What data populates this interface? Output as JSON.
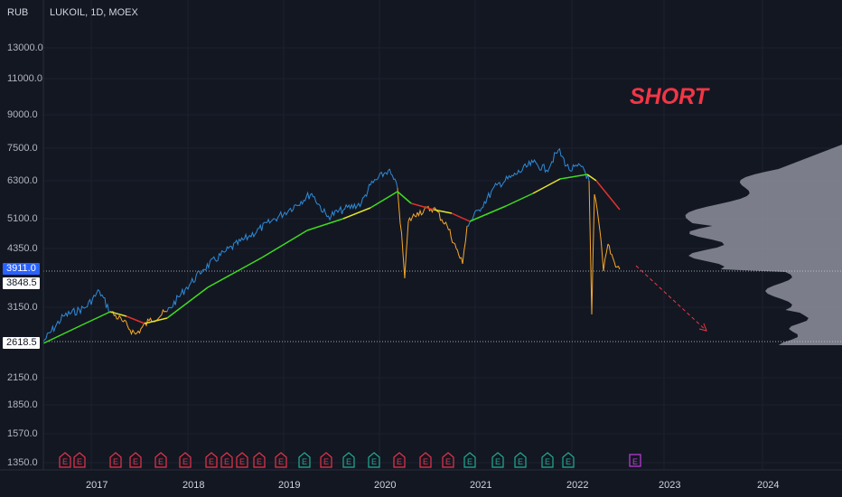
{
  "chart_title": "LUKOIL, 1D, MOEX",
  "currency": "RUB",
  "annotation": "SHORT",
  "price_axis": [
    "13000.0",
    "11000.0",
    "9000.0",
    "7500.0",
    "6300.0",
    "5100.0",
    "4350.0",
    "3150.0",
    "2150.0",
    "1850.0",
    "1570.0",
    "1350.0"
  ],
  "time_axis": [
    "2017",
    "2018",
    "2019",
    "2020",
    "2021",
    "2022",
    "2023",
    "2024"
  ],
  "price_labels": {
    "last": "3911.0",
    "level": "3848.5",
    "low": "2618.5"
  },
  "earnings_marker": "E",
  "colors": {
    "background": "#131722",
    "price_up": "#2e8bd8",
    "price_down": "#f7a82a",
    "ma_up": "#3fdc1f",
    "ma_flat": "#e3e32b",
    "ma_down": "#e0312c",
    "short": "#f23645",
    "earn_red": "#e8334a",
    "earn_green": "#22ab94",
    "earn_purple": "#c13ddc",
    "volume_profile": "#8e919c"
  },
  "chart_data": {
    "type": "line",
    "title": "LUKOIL, 1D, MOEX",
    "y_scale": "log",
    "ylabel": "RUB",
    "x_range": [
      "2016-07",
      "2024-12"
    ],
    "y_range": [
      1300,
      15000
    ],
    "series": [
      {
        "x": [
          "2016-07",
          "2016-11",
          "2017-02",
          "2017-06",
          "2017-09",
          "2018-01",
          "2018-05",
          "2018-09",
          "2018-11",
          "2019-03",
          "2019-07",
          "2019-12",
          "2020-01",
          "2020-03",
          "2020-06",
          "2020-10",
          "2020-12",
          "2021-06",
          "2021-10",
          "2021-12",
          "2022-02",
          "2022-03",
          "2022-06"
        ],
        "y": [
          2618,
          3000,
          3600,
          2950,
          3050,
          3300,
          4300,
          5400,
          4900,
          5600,
          6000,
          6800,
          6400,
          4000,
          4900,
          3900,
          5300,
          6000,
          7400,
          6600,
          6800,
          5700,
          3911
        ]
      },
      {
        "x": [
          "2016-07",
          "2017-02",
          "2017-08",
          "2018-04",
          "2018-12",
          "2019-09",
          "2020-02",
          "2020-09",
          "2021-03",
          "2021-08",
          "2022-01",
          "2022-06"
        ],
        "y": [
          2618,
          3200,
          3050,
          3400,
          4600,
          5200,
          5800,
          5000,
          5700,
          6400,
          6700,
          5200
        ]
      }
    ],
    "horizontal_levels": [
      3911.0,
      3848.5,
      2618.5
    ],
    "earnings_events": 22
  }
}
